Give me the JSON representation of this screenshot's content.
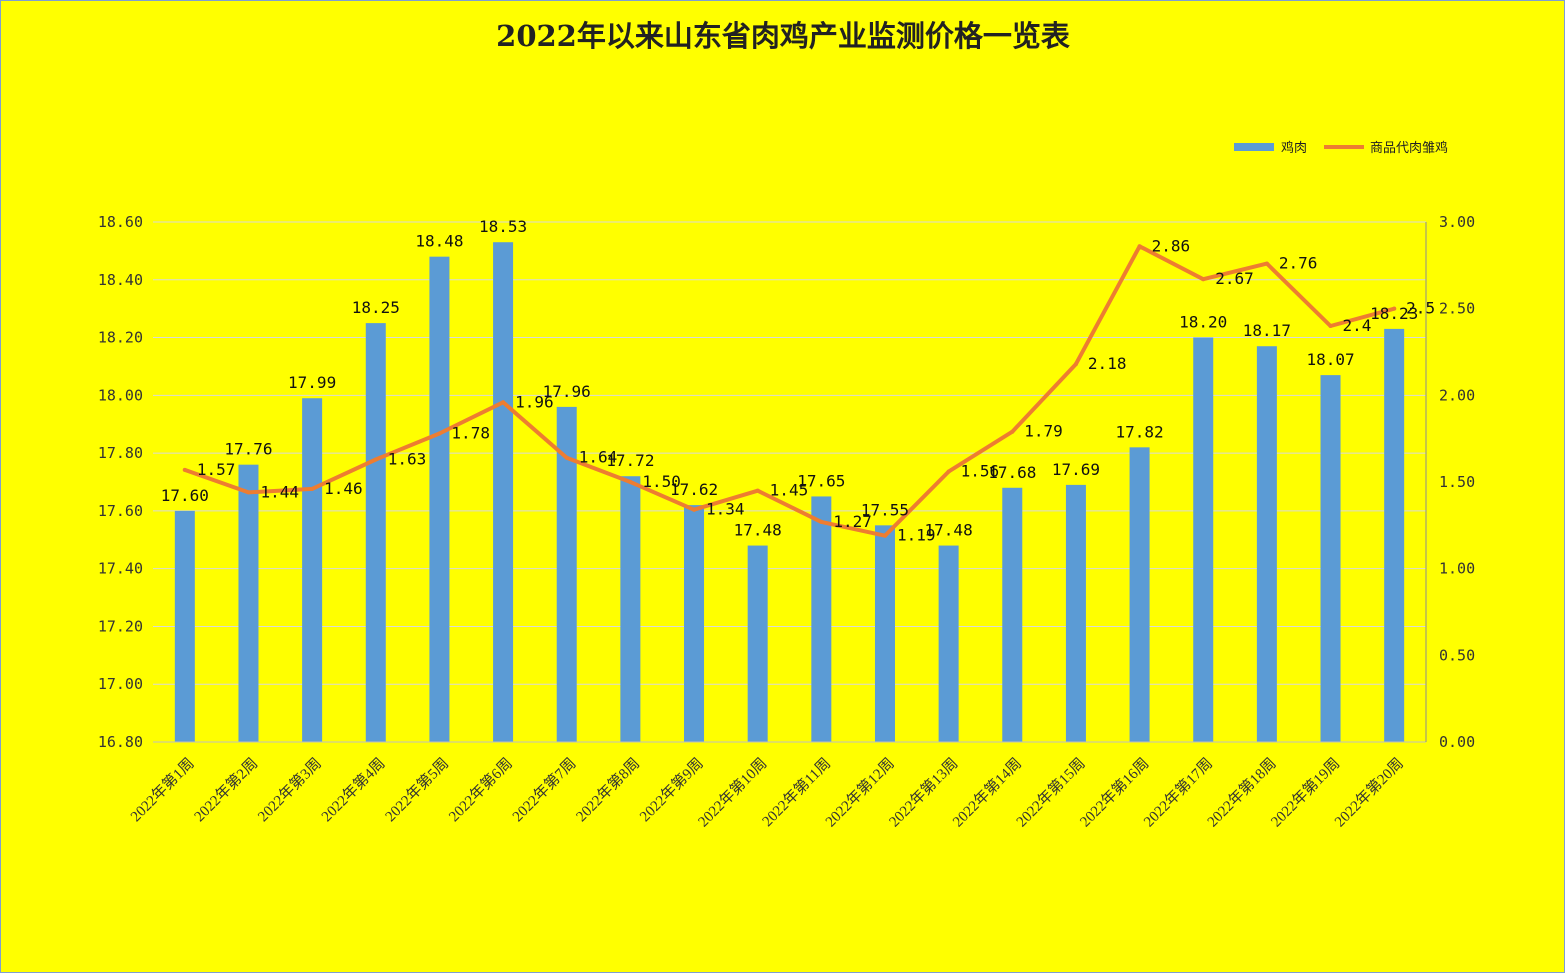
{
  "chart_data": {
    "type": "bar",
    "title": "2022年以来山东省肉鸡产业监测价格一览表",
    "categories": [
      "2022年第1周",
      "2022年第2周",
      "2022年第3周",
      "2022年第4周",
      "2022年第5周",
      "2022年第6周",
      "2022年第7周",
      "2022年第8周",
      "2022年第9周",
      "2022年第10周",
      "2022年第11周",
      "2022年第12周",
      "2022年第13周",
      "2022年第14周",
      "2022年第15周",
      "2022年第16周",
      "2022年第17周",
      "2022年第18周",
      "2022年第19周",
      "2022年第20周"
    ],
    "series": [
      {
        "name": "鸡肉",
        "type": "bar",
        "axis": "left",
        "color": "#5b9bd5",
        "values": [
          17.6,
          17.76,
          17.99,
          18.25,
          18.48,
          18.53,
          17.96,
          17.72,
          17.62,
          17.48,
          17.65,
          17.55,
          17.48,
          17.68,
          17.69,
          17.82,
          18.2,
          18.17,
          18.07,
          18.23
        ],
        "labels": [
          "17.60",
          "17.76",
          "17.99",
          "18.25",
          "18.48",
          "18.53",
          "17.96",
          "17.72",
          "17.62",
          "17.48",
          "17.65",
          "17.55",
          "17.48",
          "17.68",
          "17.69",
          "17.82",
          "18.20",
          "18.17",
          "18.07",
          "18.23"
        ]
      },
      {
        "name": "商品代肉雏鸡",
        "type": "line",
        "axis": "right",
        "color": "#ed7d31",
        "values": [
          1.57,
          1.44,
          1.46,
          1.63,
          1.78,
          1.96,
          1.64,
          1.5,
          1.34,
          1.45,
          1.27,
          1.19,
          1.56,
          1.79,
          2.18,
          2.86,
          2.67,
          2.76,
          2.4,
          2.5
        ],
        "labels": [
          "1.57",
          "1.44",
          "1.46",
          "1.63",
          "1.78",
          "1.96",
          "1.64",
          "1.50",
          "1.34",
          "1.45",
          "1.27",
          "1.19",
          "1.56",
          "1.79",
          "2.18",
          "2.86",
          "2.67",
          "2.76",
          "2.4",
          "2.5"
        ]
      }
    ],
    "y_left": {
      "min": 16.8,
      "max": 18.6,
      "step": 0.2,
      "ticks": [
        "16.80",
        "17.00",
        "17.20",
        "17.40",
        "17.60",
        "17.80",
        "18.00",
        "18.20",
        "18.40",
        "18.60"
      ]
    },
    "y_right": {
      "min": 0,
      "max": 3.0,
      "step": 0.5,
      "ticks": [
        "0.00",
        "0.50",
        "1.00",
        "1.50",
        "2.00",
        "2.50",
        "3.00"
      ]
    },
    "grid": true,
    "legend_position": "top-right",
    "background": "#ffff00"
  }
}
